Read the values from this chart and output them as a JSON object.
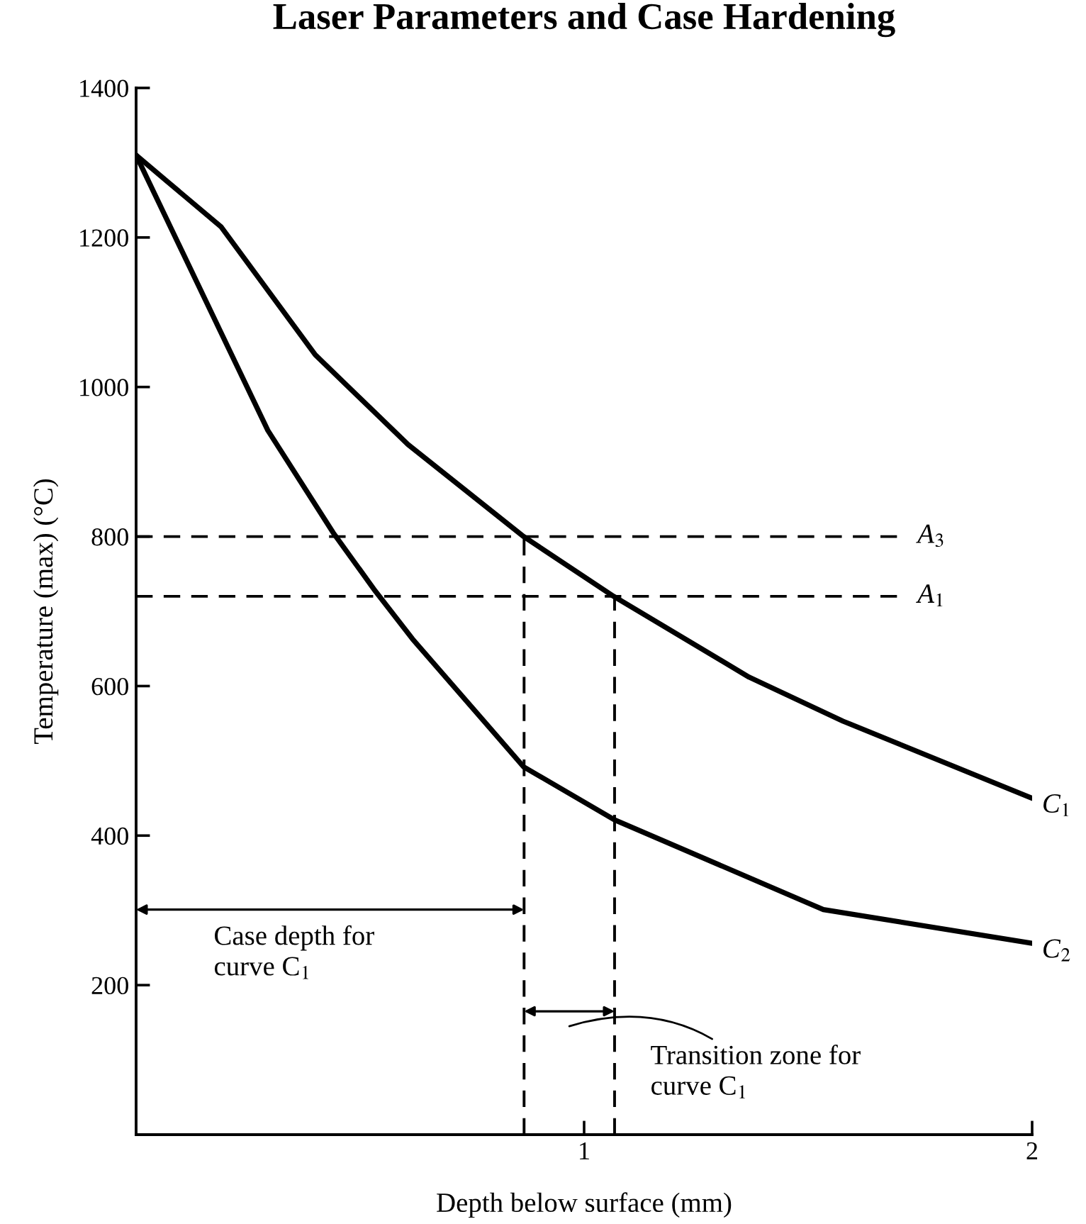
{
  "chart_data": {
    "type": "line",
    "title": "Laser Parameters and Case Hardening",
    "xlabel": "Depth below surface (mm)",
    "ylabel": "Temperature (max) (°C)",
    "xlim": [
      0,
      2
    ],
    "xticks": [
      1,
      2
    ],
    "ylim": [
      0,
      1400
    ],
    "yticks": [
      200,
      400,
      600,
      800,
      1000,
      1200,
      1400
    ],
    "series": [
      {
        "name": "C$_{1}$",
        "color": "#000000",
        "x": [
          0,
          0.19,
          0.4,
          0.607,
          0.865,
          1.066,
          1.368,
          1.578,
          2.0
        ],
        "values": [
          1310,
          1214,
          1043,
          923,
          800,
          720,
          612,
          553,
          450
        ]
      },
      {
        "name": "C$_{2}$",
        "color": "#000000",
        "x": [
          0,
          0.294,
          0.44,
          0.534,
          0.617,
          0.865,
          1.068,
          1.534,
          2.0
        ],
        "values": [
          1310,
          942,
          805,
          727,
          663,
          492,
          421,
          301,
          256
        ]
      }
    ],
    "ref_lines": [
      {
        "axis": "y",
        "value": 800,
        "label": "A$_{3}$",
        "line_style": "dashed",
        "color": "#000000"
      },
      {
        "axis": "y",
        "value": 720,
        "label": "A$_{1}$",
        "line_style": "dashed",
        "color": "#000000"
      },
      {
        "axis": "x",
        "value": 0.866,
        "line_style": "dashed",
        "color": "#000000"
      },
      {
        "axis": "x",
        "value": 1.068,
        "line_style": "dashed",
        "color": "#000000"
      }
    ],
    "annotations": [
      "Case depth for\ncurve C$_{1}$",
      {
        "text": "Transition zone for\ncurve C$_{1}$",
        "x": 1.068,
        "y": 165
      }
    ],
    "grid": false,
    "line_style": "solid",
    "marker": "none"
  }
}
